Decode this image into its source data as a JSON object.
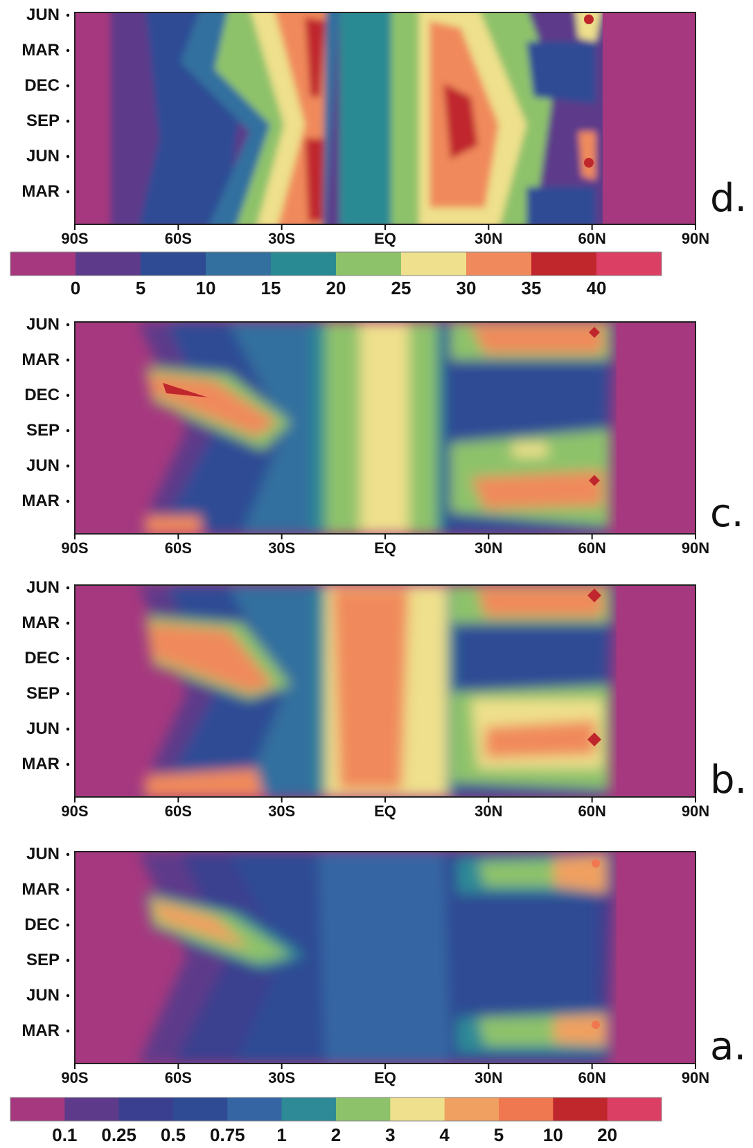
{
  "chart_data": [
    {
      "type": "heatmap",
      "panel_label": "d.",
      "x_tick_labels": [
        "90S",
        "60S",
        "30S",
        "EQ",
        "30N",
        "60N",
        "90N"
      ],
      "x_range": [
        -90,
        90
      ],
      "y_tick_labels": [
        "JUN",
        "MAR",
        "DEC",
        "SEP",
        "JUN",
        "MAR"
      ],
      "colorbar": {
        "tick_labels": [
          "0",
          "5",
          "10",
          "15",
          "20",
          "25",
          "30",
          "35",
          "40"
        ],
        "levels": [
          0,
          5,
          10,
          15,
          20,
          25,
          30,
          35,
          40
        ],
        "colors": [
          "#a6387f",
          "#5d3a8a",
          "#2f4b94",
          "#33709f",
          "#2a8a93",
          "#8ec26a",
          "#eee08c",
          "#f08a5c",
          "#c0272d",
          "#dc3f64"
        ]
      },
      "features": [
        {
          "lat": -20,
          "season": "all year",
          "level": 35
        },
        {
          "lat": 20,
          "season": "SEP-DEC",
          "level": 35
        },
        {
          "lat": 62,
          "season": "JUN",
          "level": 35
        },
        {
          "lat": 0,
          "season": "all year",
          "level": 15
        },
        {
          "lat": -75,
          "season": "all year",
          "level": 0
        }
      ]
    },
    {
      "type": "heatmap",
      "panel_label": "c.",
      "x_tick_labels": [
        "90S",
        "60S",
        "30S",
        "EQ",
        "30N",
        "60N",
        "90N"
      ],
      "x_range": [
        -90,
        90
      ],
      "y_tick_labels": [
        "JUN",
        "MAR",
        "DEC",
        "SEP",
        "JUN",
        "MAR"
      ],
      "features": [
        {
          "lat": -55,
          "season": "DEC",
          "level": 10
        },
        {
          "lat": 0,
          "season": "all year",
          "level": 3
        },
        {
          "lat": 45,
          "season": "JUN",
          "level": 5
        },
        {
          "lat": 62,
          "season": "JUN",
          "level": 10
        }
      ]
    },
    {
      "type": "heatmap",
      "panel_label": "b.",
      "x_tick_labels": [
        "90S",
        "60S",
        "30S",
        "EQ",
        "30N",
        "60N",
        "90N"
      ],
      "x_range": [
        -90,
        90
      ],
      "y_tick_labels": [
        "JUN",
        "MAR",
        "DEC",
        "SEP",
        "JUN",
        "MAR"
      ],
      "features": [
        {
          "lat": -50,
          "season": "DEC",
          "level": 5
        },
        {
          "lat": 0,
          "season": "all year",
          "level": 4
        },
        {
          "lat": 45,
          "season": "JUN",
          "level": 5
        },
        {
          "lat": 62,
          "season": "JUN",
          "level": 10
        }
      ]
    },
    {
      "type": "heatmap",
      "panel_label": "a.",
      "x_tick_labels": [
        "90S",
        "60S",
        "30S",
        "EQ",
        "30N",
        "60N",
        "90N"
      ],
      "x_range": [
        -90,
        90
      ],
      "y_tick_labels": [
        "JUN",
        "MAR",
        "DEC",
        "SEP",
        "JUN",
        "MAR"
      ],
      "colorbar": {
        "tick_labels": [
          "0.1",
          "0.25",
          "0.5",
          "0.75",
          "1",
          "2",
          "3",
          "4",
          "5",
          "10",
          "20"
        ],
        "levels": [
          0.1,
          0.25,
          0.5,
          0.75,
          1,
          2,
          3,
          4,
          5,
          10,
          20
        ],
        "colors": [
          "#a6387f",
          "#5d3a8a",
          "#3a3f8f",
          "#2f4b94",
          "#3566a3",
          "#2e8a96",
          "#8ec26a",
          "#eee08c",
          "#f0a060",
          "#f07850",
          "#c0272d",
          "#dc3f64"
        ]
      },
      "features": [
        {
          "lat": -55,
          "season": "DEC",
          "level": 5
        },
        {
          "lat": 0,
          "season": "all year",
          "level": 0.75
        },
        {
          "lat": 45,
          "season": "JUN",
          "level": 3
        },
        {
          "lat": 62,
          "season": "MAR",
          "level": 5
        }
      ]
    }
  ]
}
